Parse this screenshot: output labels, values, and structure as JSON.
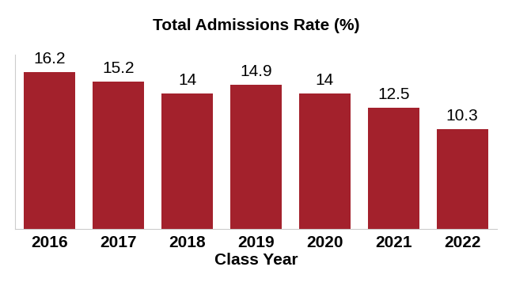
{
  "chart_data": {
    "type": "bar",
    "title": "Total Admissions Rate (%)",
    "x_label": "Class Year",
    "categories": [
      "2016",
      "2017",
      "2018",
      "2019",
      "2020",
      "2021",
      "2022"
    ],
    "values": [
      16.2,
      15.2,
      14,
      14.9,
      14,
      12.5,
      10.3
    ],
    "color": "#a3212c",
    "ylim": [
      0,
      18
    ],
    "data_labels": true,
    "tick_labels": "x",
    "grid": false
  }
}
